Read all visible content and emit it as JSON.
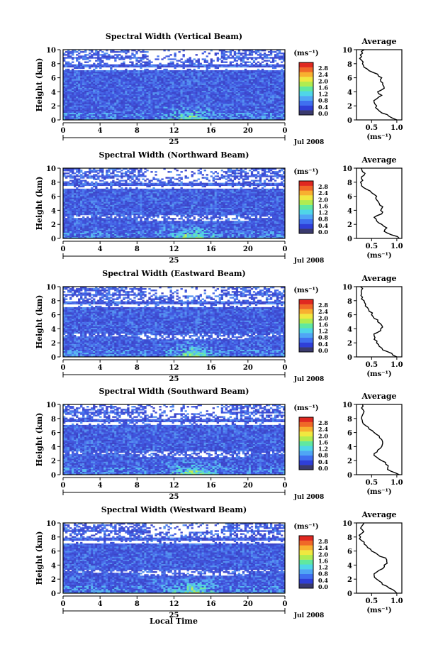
{
  "figure": {
    "date_label": "Jul 2008",
    "day_label": "25",
    "xlabel": "Local Time",
    "ylabel": "Height (km)",
    "unit_label": "(ms⁻¹)",
    "avg_title": "Average",
    "avg_xlabel": "(ms⁻¹)",
    "colorbar_ticks": [
      "2.8",
      "2.4",
      "2.0",
      "1.6",
      "1.2",
      "0.8",
      "0.4",
      "0.0"
    ],
    "colorbar_colors": [
      "#3a3a6e",
      "#2f3fd8",
      "#3f6ff0",
      "#4fa6f5",
      "#4fd6e8",
      "#60e8a0",
      "#b0ec50",
      "#f0e840",
      "#f8b030",
      "#f06828",
      "#e02820"
    ]
  },
  "chart_data": [
    {
      "type": "heatmap",
      "title": "Spectral Width (Vertical Beam)",
      "x_ticks": [
        "0",
        "4",
        "8",
        "12",
        "16",
        "20",
        "0"
      ],
      "xlim": [
        0,
        24
      ],
      "y_ticks": [
        "0",
        "2",
        "4",
        "6",
        "8",
        "10"
      ],
      "ylim": [
        0,
        10
      ],
      "colorbar_range": [
        0,
        3.0
      ],
      "average_profile": {
        "x_ticks": [
          "0.5",
          "1.0"
        ],
        "xlim": [
          0.2,
          1.1
        ],
        "height": [
          0,
          0.5,
          1,
          1.5,
          2,
          2.5,
          3,
          3.5,
          4,
          4.5,
          5,
          5.5,
          6,
          6.5,
          7,
          7.5,
          8,
          8.5,
          9,
          9.5,
          10
        ],
        "width": [
          1.0,
          0.85,
          0.7,
          0.62,
          0.6,
          0.55,
          0.6,
          0.7,
          0.62,
          0.75,
          0.72,
          0.68,
          0.7,
          0.62,
          0.45,
          0.35,
          0.32,
          0.3,
          0.3,
          0.32,
          0.35
        ]
      }
    },
    {
      "type": "heatmap",
      "title": "Spectral Width (Northward Beam)",
      "x_ticks": [
        "0",
        "4",
        "8",
        "12",
        "16",
        "20",
        "0"
      ],
      "xlim": [
        0,
        24
      ],
      "y_ticks": [
        "0",
        "2",
        "4",
        "6",
        "8",
        "10"
      ],
      "ylim": [
        0,
        10
      ],
      "colorbar_range": [
        0,
        3.0
      ],
      "average_profile": {
        "x_ticks": [
          "0.5",
          "1.0"
        ],
        "xlim": [
          0.2,
          1.1
        ],
        "height": [
          0,
          0.5,
          1,
          1.5,
          2,
          2.5,
          3,
          3.5,
          4,
          4.5,
          5,
          5.5,
          6,
          6.5,
          7,
          7.5,
          8,
          8.5,
          9,
          9.5,
          10
        ],
        "width": [
          1.05,
          0.9,
          0.75,
          0.8,
          0.7,
          0.6,
          0.55,
          0.7,
          0.68,
          0.72,
          0.65,
          0.6,
          0.6,
          0.5,
          0.4,
          0.3,
          0.28,
          0.3,
          0.35,
          0.32,
          0.3
        ]
      }
    },
    {
      "type": "heatmap",
      "title": "Spectral Width (Eastward Beam)",
      "x_ticks": [
        "0",
        "4",
        "8",
        "12",
        "16",
        "20",
        "0"
      ],
      "xlim": [
        0,
        24
      ],
      "y_ticks": [
        "0",
        "2",
        "4",
        "6",
        "8",
        "10"
      ],
      "ylim": [
        0,
        10
      ],
      "colorbar_range": [
        0,
        3.0
      ],
      "average_profile": {
        "x_ticks": [
          "0.5",
          "1.0"
        ],
        "xlim": [
          0.2,
          1.1
        ],
        "height": [
          0,
          0.5,
          1,
          1.5,
          2,
          2.5,
          3,
          3.5,
          4,
          4.5,
          5,
          5.5,
          6,
          6.5,
          7,
          7.5,
          8,
          8.5,
          9,
          9.5,
          10
        ],
        "width": [
          1.0,
          0.9,
          0.72,
          0.65,
          0.6,
          0.55,
          0.55,
          0.62,
          0.68,
          0.7,
          0.62,
          0.55,
          0.5,
          0.45,
          0.42,
          0.38,
          0.35,
          0.32,
          0.3,
          0.3,
          0.28
        ]
      }
    },
    {
      "type": "heatmap",
      "title": "Spectral Width (Southward Beam)",
      "x_ticks": [
        "0",
        "4",
        "8",
        "12",
        "16",
        "20",
        "0"
      ],
      "xlim": [
        0,
        24
      ],
      "y_ticks": [
        "0",
        "2",
        "4",
        "6",
        "8",
        "10"
      ],
      "ylim": [
        0,
        10
      ],
      "colorbar_range": [
        0,
        3.0
      ],
      "average_profile": {
        "x_ticks": [
          "0.5",
          "1.0"
        ],
        "xlim": [
          0.2,
          1.1
        ],
        "height": [
          0,
          0.5,
          1,
          1.5,
          2,
          2.5,
          3,
          3.5,
          4,
          4.5,
          5,
          5.5,
          6,
          6.5,
          7,
          7.5,
          8,
          8.5,
          9,
          9.5,
          10
        ],
        "width": [
          1.05,
          0.88,
          0.82,
          0.78,
          0.7,
          0.6,
          0.55,
          0.62,
          0.7,
          0.72,
          0.7,
          0.65,
          0.55,
          0.45,
          0.38,
          0.32,
          0.3,
          0.32,
          0.35,
          0.3,
          0.32
        ]
      }
    },
    {
      "type": "heatmap",
      "title": "Spectral Width (Westward Beam)",
      "x_ticks": [
        "0",
        "4",
        "8",
        "12",
        "16",
        "20",
        "0"
      ],
      "xlim": [
        0,
        24
      ],
      "y_ticks": [
        "0",
        "2",
        "4",
        "6",
        "8",
        "10"
      ],
      "ylim": [
        0,
        10
      ],
      "colorbar_range": [
        0,
        3.0
      ],
      "average_profile": {
        "x_ticks": [
          "0.5",
          "1.0"
        ],
        "xlim": [
          0.2,
          1.1
        ],
        "height": [
          0,
          0.5,
          1,
          1.5,
          2,
          2.5,
          3,
          3.5,
          4,
          4.5,
          5,
          5.5,
          6,
          6.5,
          7,
          7.5,
          8,
          8.5,
          9,
          9.5,
          10
        ],
        "width": [
          1.0,
          0.92,
          0.8,
          0.7,
          0.6,
          0.55,
          0.6,
          0.72,
          0.75,
          0.8,
          0.78,
          0.62,
          0.5,
          0.42,
          0.35,
          0.3,
          0.28,
          0.3,
          0.32,
          0.3,
          0.35
        ]
      }
    }
  ]
}
